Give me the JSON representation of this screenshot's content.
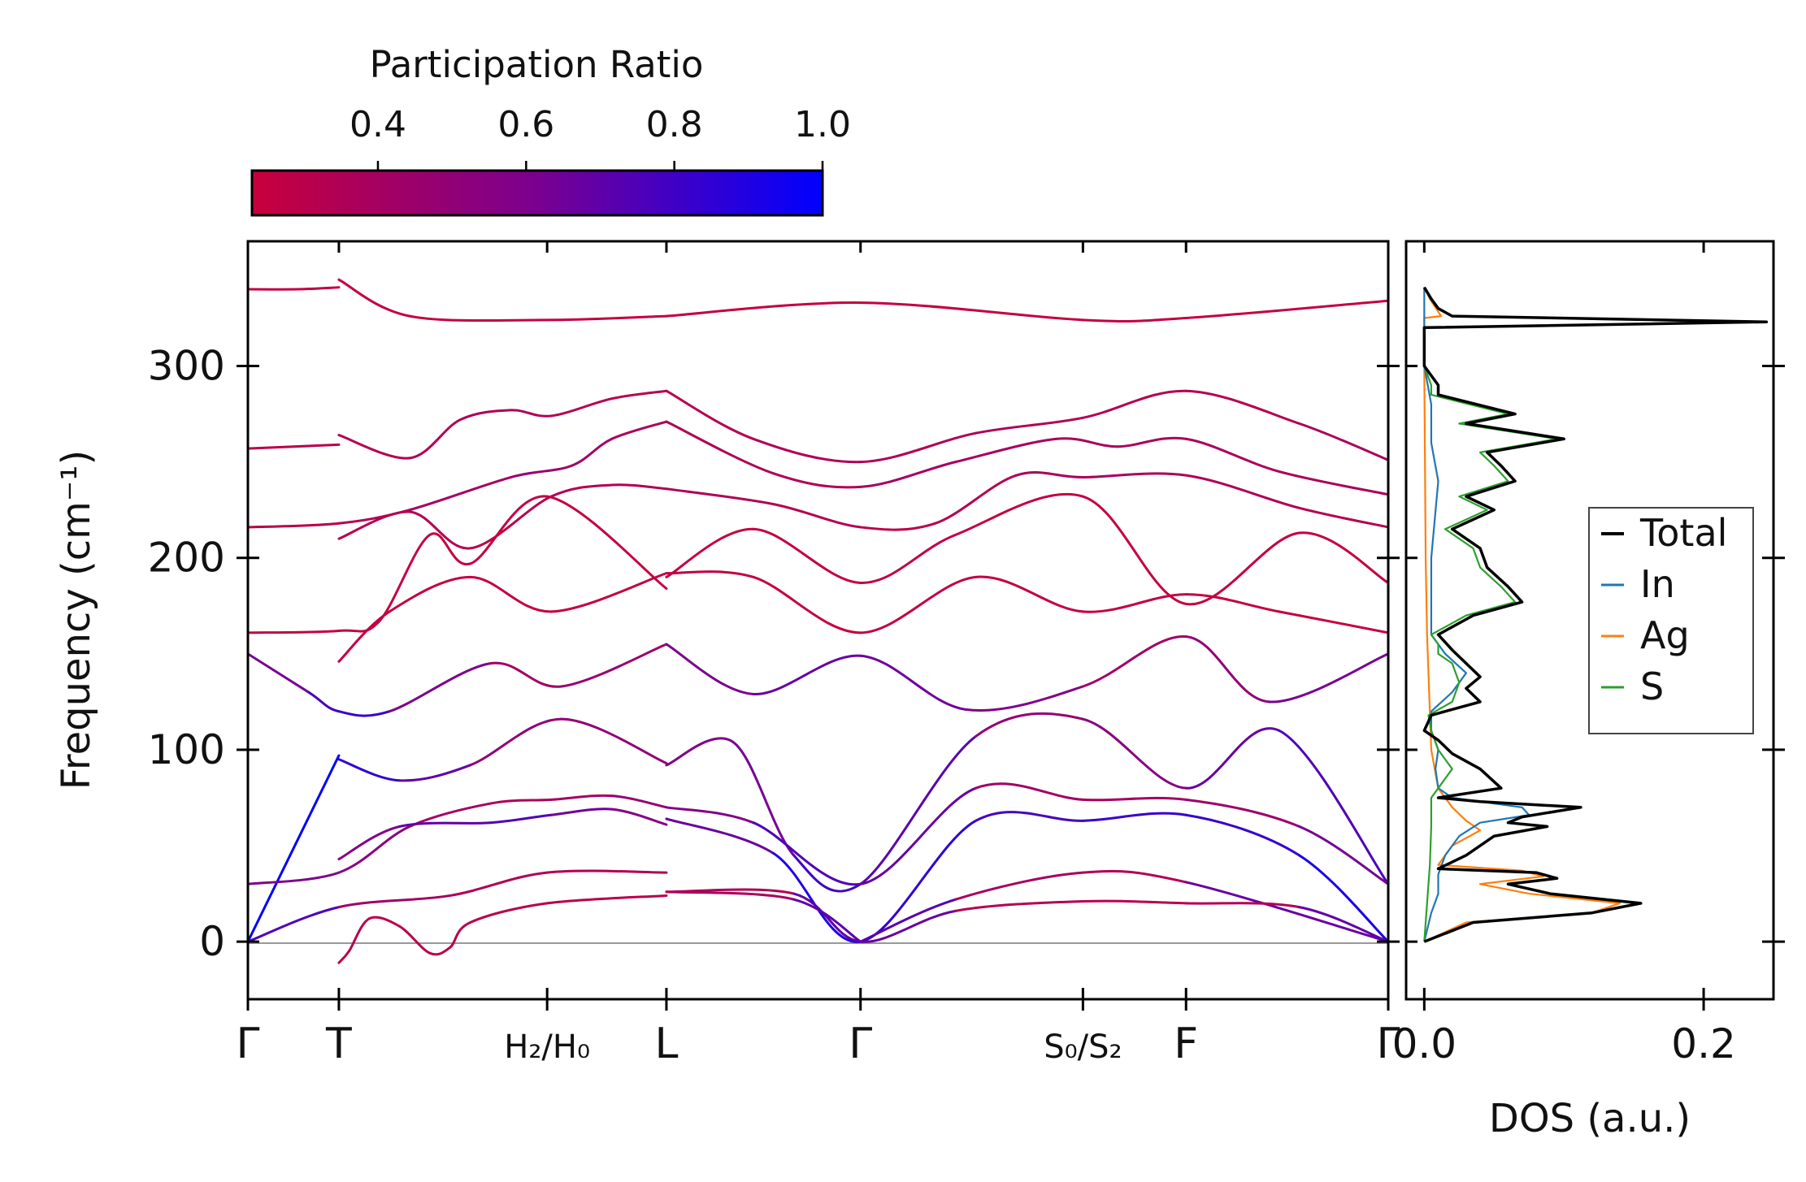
{
  "chart_data": [
    {
      "type": "colorbar",
      "title": "Participation Ratio",
      "range": [
        0.23,
        1.0
      ],
      "ticks": [
        0.4,
        0.6,
        0.8,
        1.0
      ],
      "tick_labels": [
        "0.4",
        "0.6",
        "0.8",
        "1.0"
      ],
      "colors": {
        "low": "#c8003c",
        "mid": "#7a0090",
        "high": "#0000ff"
      }
    },
    {
      "type": "line",
      "title": "",
      "ylabel": "Frequency (cm⁻¹)",
      "ylim": [
        -30,
        365
      ],
      "yticks": [
        0,
        100,
        200,
        300
      ],
      "ytick_labels": [
        "0",
        "100",
        "200",
        "300"
      ],
      "xlim": [
        0,
        5.64
      ],
      "xtick_positions": [
        0,
        0.45,
        1.48,
        2.07,
        3.03,
        4.13,
        4.64,
        5.64
      ],
      "xtick_labels": [
        "Γ",
        "T",
        "H₂/H₀",
        "L",
        "Γ",
        "S₀/S₂",
        "F",
        "Γ"
      ],
      "series": [
        {
          "name": "band 1",
          "x": [
            0,
            0.25,
            0.45
          ],
          "y": [
            340,
            340,
            341
          ],
          "pr": [
            0.25,
            0.25,
            0.25
          ]
        },
        {
          "name": "band 2",
          "x": [
            0.45,
            0.8,
            1.48,
            2.07
          ],
          "y": [
            345,
            326,
            324,
            326
          ],
          "pr": [
            0.25,
            0.25,
            0.25,
            0.25
          ]
        },
        {
          "name": "band 3",
          "x": [
            2.07,
            3.03,
            4.13,
            4.64,
            5.64
          ],
          "y": [
            326,
            333,
            324,
            325,
            334
          ],
          "pr": [
            0.25,
            0.25,
            0.25,
            0.25,
            0.25
          ]
        },
        {
          "name": "band 4",
          "x": [
            0,
            0.45
          ],
          "y": [
            257,
            259
          ],
          "pr": [
            0.3,
            0.3
          ]
        },
        {
          "name": "band 5",
          "x": [
            0.45,
            0.8,
            1.05,
            1.3,
            1.5,
            1.8,
            2.07
          ],
          "y": [
            264,
            252,
            272,
            277,
            274,
            283,
            287
          ],
          "pr": [
            0.3,
            0.35,
            0.35,
            0.35,
            0.35,
            0.3,
            0.3
          ]
        },
        {
          "name": "band 6",
          "x": [
            2.07,
            2.5,
            3.03,
            3.6,
            4.13,
            4.64,
            5.2,
            5.64
          ],
          "y": [
            287,
            262,
            250,
            265,
            273,
            287,
            270,
            251
          ],
          "pr": [
            0.3,
            0.35,
            0.35,
            0.35,
            0.35,
            0.3,
            0.35,
            0.4
          ]
        },
        {
          "name": "band 7",
          "x": [
            0,
            0.45,
            0.8,
            1.3,
            1.6,
            1.8,
            2.07
          ],
          "y": [
            216,
            218,
            225,
            242,
            248,
            262,
            271
          ],
          "pr": [
            0.3,
            0.3,
            0.35,
            0.45,
            0.45,
            0.4,
            0.35
          ]
        },
        {
          "name": "band 8",
          "x": [
            2.07,
            2.6,
            3.03,
            3.5,
            4.0,
            4.3,
            4.64,
            5.1,
            5.64
          ],
          "y": [
            271,
            244,
            237,
            250,
            262,
            258,
            262,
            245,
            233
          ],
          "pr": [
            0.35,
            0.35,
            0.35,
            0.45,
            0.35,
            0.4,
            0.35,
            0.4,
            0.35
          ]
        },
        {
          "name": "band 9",
          "x": [
            0.45,
            0.8,
            1.1,
            1.5,
            1.8,
            2.07
          ],
          "y": [
            210,
            224,
            205,
            232,
            238,
            236
          ],
          "pr": [
            0.3,
            0.35,
            0.3,
            0.3,
            0.35,
            0.35
          ]
        },
        {
          "name": "band 10",
          "x": [
            2.07,
            2.6,
            3.03,
            3.4,
            3.8,
            4.13,
            4.64,
            5.2,
            5.64
          ],
          "y": [
            236,
            228,
            216,
            218,
            243,
            242,
            243,
            226,
            216
          ],
          "pr": [
            0.35,
            0.35,
            0.3,
            0.3,
            0.35,
            0.4,
            0.35,
            0.35,
            0.3
          ]
        },
        {
          "name": "band 11",
          "x": [
            0,
            0.45,
            0.65,
            0.9,
            1.1,
            1.48,
            2.07
          ],
          "y": [
            161,
            162,
            167,
            212,
            197,
            232,
            184
          ],
          "pr": [
            0.25,
            0.25,
            0.25,
            0.25,
            0.25,
            0.25,
            0.25
          ]
        },
        {
          "name": "band 12",
          "x": [
            2.07,
            2.5,
            3.03,
            3.5,
            4.13,
            4.64,
            5.2,
            5.64
          ],
          "y": [
            190,
            215,
            187,
            212,
            232,
            176,
            213,
            187
          ],
          "pr": [
            0.25,
            0.25,
            0.25,
            0.25,
            0.25,
            0.25,
            0.25,
            0.25
          ]
        },
        {
          "name": "band 13",
          "x": [
            0.45,
            0.7,
            1.1,
            1.5,
            2.07
          ],
          "y": [
            146,
            172,
            190,
            172,
            192
          ],
          "pr": [
            0.25,
            0.25,
            0.25,
            0.25,
            0.25
          ]
        },
        {
          "name": "band 14",
          "x": [
            2.07,
            2.5,
            3.03,
            3.6,
            4.13,
            4.64,
            5.1,
            5.64
          ],
          "y": [
            192,
            190,
            161,
            190,
            172,
            181,
            172,
            161
          ],
          "pr": [
            0.25,
            0.25,
            0.25,
            0.25,
            0.25,
            0.25,
            0.25,
            0.25
          ]
        },
        {
          "name": "band 15",
          "x": [
            0,
            0.3,
            0.45,
            0.7,
            1.2,
            1.55,
            2.07
          ],
          "y": [
            150,
            130,
            120,
            120,
            145,
            133,
            155
          ],
          "pr": [
            0.55,
            0.7,
            0.85,
            0.8,
            0.4,
            0.45,
            0.45
          ]
        },
        {
          "name": "band 16",
          "x": [
            2.07,
            2.5,
            3.03,
            3.55,
            4.13,
            4.64,
            5.05,
            5.64
          ],
          "y": [
            155,
            129,
            149,
            121,
            133,
            159,
            125,
            150
          ],
          "pr": [
            0.45,
            0.75,
            0.6,
            0.7,
            0.45,
            0.4,
            0.6,
            0.65
          ]
        },
        {
          "name": "band 17",
          "x": [
            0,
            0.45
          ],
          "y": [
            0,
            97
          ],
          "pr": [
            1.0,
            1.0
          ]
        },
        {
          "name": "band 18",
          "x": [
            0.45,
            0.75,
            1.1,
            1.55,
            2.07
          ],
          "y": [
            95,
            84,
            92,
            116,
            93
          ],
          "pr": [
            0.9,
            0.8,
            0.6,
            0.4,
            0.6
          ]
        },
        {
          "name": "band 19",
          "x": [
            2.07,
            2.4,
            2.7,
            3.03,
            3.6,
            4.13,
            4.64,
            5.1,
            5.64
          ],
          "y": [
            92,
            104,
            45,
            30,
            107,
            116,
            80,
            110,
            30
          ],
          "pr": [
            0.6,
            0.55,
            0.7,
            0.9,
            0.55,
            0.4,
            0.7,
            0.65,
            0.85
          ]
        },
        {
          "name": "band 20",
          "x": [
            0,
            0.45,
            0.8,
            1.2,
            1.5,
            1.8,
            2.07
          ],
          "y": [
            30,
            36,
            60,
            72,
            74,
            76,
            70
          ],
          "pr": [
            0.6,
            0.6,
            0.45,
            0.35,
            0.4,
            0.4,
            0.55
          ]
        },
        {
          "name": "band 21",
          "x": [
            2.07,
            2.5,
            3.03,
            3.6,
            4.13,
            4.64,
            5.2,
            5.64
          ],
          "y": [
            70,
            62,
            30,
            80,
            74,
            74,
            60,
            30
          ],
          "pr": [
            0.55,
            0.6,
            0.9,
            0.45,
            0.4,
            0.4,
            0.5,
            0.75
          ]
        },
        {
          "name": "band 22",
          "x": [
            0.45,
            0.75,
            1.2,
            1.5,
            1.8,
            2.07
          ],
          "y": [
            43,
            60,
            62,
            66,
            69,
            61
          ],
          "pr": [
            0.55,
            0.6,
            0.8,
            0.7,
            0.6,
            0.5
          ]
        },
        {
          "name": "band 23",
          "x": [
            2.07,
            2.6,
            3.03,
            3.6,
            4.13,
            4.64,
            5.2,
            5.64
          ],
          "y": [
            64,
            46,
            0,
            63,
            63,
            66,
            45,
            0
          ],
          "pr": [
            0.55,
            0.8,
            1.0,
            0.7,
            0.85,
            0.8,
            0.85,
            1.0
          ]
        },
        {
          "name": "band 24",
          "x": [
            0,
            0.45,
            1.0,
            1.48,
            2.07
          ],
          "y": [
            0,
            18,
            24,
            36,
            36
          ],
          "pr": [
            1.0,
            0.5,
            0.35,
            0.35,
            0.35
          ]
        },
        {
          "name": "band 25",
          "x": [
            2.07,
            2.7,
            3.03
          ],
          "y": [
            26,
            22,
            0
          ],
          "pr": [
            0.35,
            0.4,
            1.0
          ]
        },
        {
          "name": "band 26",
          "x": [
            3.03,
            3.5,
            4.13,
            4.64,
            5.64
          ],
          "y": [
            0,
            22,
            36,
            31,
            0
          ],
          "pr": [
            1.0,
            0.45,
            0.35,
            0.35,
            1.0
          ]
        },
        {
          "name": "band 27",
          "x": [
            0.45,
            0.5,
            0.6,
            0.75,
            0.9,
            1.0,
            1.1,
            1.48,
            2.07
          ],
          "y": [
            -11,
            -5,
            12,
            8,
            -6,
            -3,
            10,
            20,
            24
          ],
          "pr": [
            0.3,
            0.3,
            0.3,
            0.3,
            0.3,
            0.3,
            0.3,
            0.3,
            0.3
          ]
        },
        {
          "name": "band 28",
          "x": [
            2.07,
            2.7,
            3.03,
            3.5,
            4.13,
            4.64,
            5.2,
            5.64
          ],
          "y": [
            26,
            25,
            0,
            16,
            21,
            20,
            18,
            0
          ],
          "pr": [
            0.3,
            0.4,
            1.0,
            0.35,
            0.3,
            0.3,
            0.4,
            1.0
          ]
        }
      ]
    },
    {
      "type": "line",
      "title": "",
      "xlabel": "DOS (a.u.)",
      "xlim": [
        -0.013,
        0.25
      ],
      "xticks": [
        0.0,
        0.2
      ],
      "xtick_labels": [
        "0.0",
        "0.2"
      ],
      "ylim": [
        -30,
        365
      ],
      "legend_position": "center-right",
      "legend": [
        "Total",
        "In",
        "Ag",
        "S"
      ],
      "series": [
        {
          "name": "Total",
          "color": "#000000",
          "freq": [
            0,
            10,
            15,
            20,
            25,
            30,
            33,
            36,
            38,
            45,
            55,
            60,
            62,
            65,
            70,
            73,
            75,
            80,
            90,
            98,
            105,
            110,
            118,
            125,
            132,
            138,
            145,
            152,
            160,
            170,
            177,
            185,
            195,
            205,
            215,
            225,
            232,
            240,
            248,
            255,
            262,
            270,
            275,
            285,
            290,
            300,
            320,
            323,
            326,
            330,
            335,
            341
          ],
          "dos": [
            0.0,
            0.035,
            0.12,
            0.155,
            0.09,
            0.06,
            0.095,
            0.08,
            0.01,
            0.03,
            0.05,
            0.088,
            0.06,
            0.07,
            0.112,
            0.04,
            0.01,
            0.055,
            0.04,
            0.02,
            0.01,
            0.0,
            0.005,
            0.04,
            0.03,
            0.04,
            0.03,
            0.02,
            0.01,
            0.035,
            0.07,
            0.06,
            0.045,
            0.04,
            0.02,
            0.05,
            0.03,
            0.065,
            0.055,
            0.045,
            0.1,
            0.03,
            0.065,
            0.01,
            0.01,
            0.0,
            0.0,
            0.245,
            0.02,
            0.01,
            0.005,
            0.0
          ]
        },
        {
          "name": "In",
          "color": "#1f77b4",
          "freq": [
            0,
            15,
            25,
            35,
            45,
            55,
            62,
            66,
            70,
            75,
            80,
            90,
            100,
            110,
            120,
            130,
            140,
            150,
            160,
            200,
            240,
            260,
            280,
            300,
            341
          ],
          "dos": [
            0.0,
            0.005,
            0.01,
            0.01,
            0.015,
            0.025,
            0.04,
            0.075,
            0.07,
            0.02,
            0.01,
            0.008,
            0.01,
            0.005,
            0.005,
            0.02,
            0.03,
            0.015,
            0.005,
            0.005,
            0.01,
            0.005,
            0.005,
            0.0,
            0.0
          ]
        },
        {
          "name": "Ag",
          "color": "#ff7f0e",
          "freq": [
            0,
            10,
            15,
            20,
            25,
            30,
            34,
            37,
            40,
            50,
            58,
            63,
            70,
            80,
            100,
            120,
            140,
            160,
            200,
            300,
            325,
            326,
            335,
            341
          ],
          "dos": [
            0.0,
            0.03,
            0.12,
            0.14,
            0.075,
            0.04,
            0.085,
            0.07,
            0.01,
            0.02,
            0.04,
            0.03,
            0.02,
            0.01,
            0.005,
            0.004,
            0.003,
            0.002,
            0.001,
            0.0,
            0.0,
            0.012,
            0.004,
            0.0
          ]
        },
        {
          "name": "S",
          "color": "#2ca02c",
          "freq": [
            0,
            20,
            40,
            60,
            75,
            80,
            90,
            100,
            110,
            118,
            125,
            135,
            145,
            150,
            155,
            160,
            170,
            177,
            185,
            195,
            205,
            215,
            225,
            232,
            240,
            248,
            255,
            262,
            270,
            275,
            285,
            290,
            300,
            320,
            323,
            326,
            330,
            335,
            341
          ],
          "dos": [
            0.0,
            0.002,
            0.004,
            0.005,
            0.005,
            0.01,
            0.02,
            0.01,
            0.005,
            0.003,
            0.02,
            0.025,
            0.02,
            0.01,
            0.01,
            0.005,
            0.03,
            0.065,
            0.055,
            0.04,
            0.035,
            0.015,
            0.045,
            0.025,
            0.06,
            0.05,
            0.04,
            0.095,
            0.025,
            0.06,
            0.005,
            0.005,
            0.0,
            0.0,
            0.24,
            0.02,
            0.01,
            0.005,
            0.0
          ]
        }
      ]
    }
  ]
}
